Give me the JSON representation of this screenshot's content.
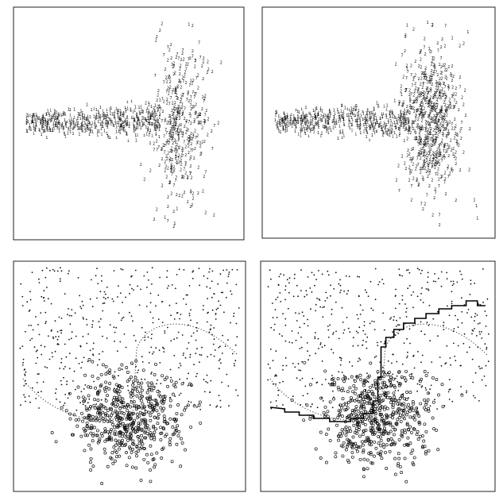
{
  "chart_data": [
    {
      "type": "scatter",
      "panel": "top-left",
      "marks": "characters",
      "classes": [
        "1",
        "2"
      ],
      "axes_visible": false
    },
    {
      "type": "scatter",
      "panel": "top-right",
      "marks": "characters",
      "classes": [
        "1",
        "2"
      ],
      "axes_visible": false
    },
    {
      "type": "scatter",
      "panel": "bottom-left",
      "marks": [
        "dot",
        "circle"
      ],
      "curves": [
        "true class boundary (dotted)"
      ],
      "axes_visible": false
    },
    {
      "type": "scatter",
      "panel": "bottom-right",
      "marks": [
        "dot",
        "circle"
      ],
      "curves": [
        "true class boundary (dotted)",
        "learned decision boundary (solid)"
      ],
      "axes_visible": false
    }
  ]
}
